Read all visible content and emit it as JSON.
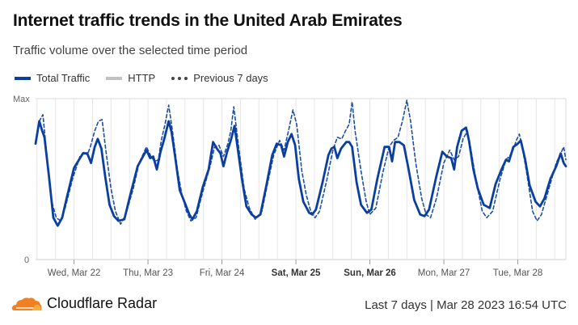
{
  "header": {
    "title": "Internet traffic trends in the United Arab Emirates",
    "subtitle": "Traffic volume over the selected time period"
  },
  "legend": [
    {
      "label": "Total Traffic",
      "color": "#0a3fa0",
      "style": "solid"
    },
    {
      "label": "HTTP",
      "color": "#c2c2c2",
      "style": "solid"
    },
    {
      "label": "Previous 7 days",
      "color": "#444444",
      "style": "dashed"
    }
  ],
  "footer": {
    "brand": "Cloudflare Radar",
    "range": "Last 7 days",
    "separator": "|",
    "timestamp": "Mar 28 2023 16:54 UTC"
  },
  "chart_data": {
    "type": "line",
    "y_tick_labels": [
      "Max",
      "0"
    ],
    "ylim": [
      0,
      100
    ],
    "x_ticks": [
      {
        "label": "Wed, Mar 22",
        "x": 1,
        "bold": false
      },
      {
        "label": "Thu, Mar 23",
        "x": 2,
        "bold": false
      },
      {
        "label": "Fri, Mar 24",
        "x": 3,
        "bold": false
      },
      {
        "label": "Sat, Mar 25",
        "x": 4,
        "bold": true
      },
      {
        "label": "Sun, Mar 26",
        "x": 5,
        "bold": true
      },
      {
        "label": "Mon, Mar 27",
        "x": 6,
        "bold": false
      },
      {
        "label": "Tue, Mar 28",
        "x": 7,
        "bold": false
      }
    ],
    "xlim": [
      0.48,
      7.65
    ],
    "grid": true,
    "series": [
      {
        "name": "Total Traffic",
        "color": "#0a3fa0",
        "dash": false,
        "points": [
          [
            0.48,
            72
          ],
          [
            0.53,
            86
          ],
          [
            0.57,
            80
          ],
          [
            0.6,
            76
          ],
          [
            0.66,
            52
          ],
          [
            0.72,
            26
          ],
          [
            0.78,
            21
          ],
          [
            0.84,
            26
          ],
          [
            0.9,
            38
          ],
          [
            1.0,
            57
          ],
          [
            1.12,
            66
          ],
          [
            1.18,
            66
          ],
          [
            1.23,
            60
          ],
          [
            1.28,
            70
          ],
          [
            1.32,
            75
          ],
          [
            1.37,
            69
          ],
          [
            1.42,
            52
          ],
          [
            1.48,
            34
          ],
          [
            1.54,
            27
          ],
          [
            1.6,
            24
          ],
          [
            1.68,
            25
          ],
          [
            1.76,
            40
          ],
          [
            1.86,
            58
          ],
          [
            1.98,
            68
          ],
          [
            2.03,
            63
          ],
          [
            2.07,
            64
          ],
          [
            2.12,
            56
          ],
          [
            2.17,
            67
          ],
          [
            2.22,
            75
          ],
          [
            2.28,
            86
          ],
          [
            2.32,
            79
          ],
          [
            2.37,
            63
          ],
          [
            2.43,
            43
          ],
          [
            2.5,
            35
          ],
          [
            2.56,
            28
          ],
          [
            2.6,
            25
          ],
          [
            2.66,
            30
          ],
          [
            2.74,
            45
          ],
          [
            2.82,
            56
          ],
          [
            2.88,
            73
          ],
          [
            2.93,
            69
          ],
          [
            2.98,
            66
          ],
          [
            3.02,
            58
          ],
          [
            3.07,
            67
          ],
          [
            3.12,
            74
          ],
          [
            3.17,
            83
          ],
          [
            3.21,
            70
          ],
          [
            3.27,
            50
          ],
          [
            3.33,
            33
          ],
          [
            3.4,
            28
          ],
          [
            3.46,
            26
          ],
          [
            3.52,
            28
          ],
          [
            3.6,
            46
          ],
          [
            3.68,
            65
          ],
          [
            3.74,
            72
          ],
          [
            3.8,
            71
          ],
          [
            3.84,
            64
          ],
          [
            3.89,
            73
          ],
          [
            3.94,
            78
          ],
          [
            3.99,
            71
          ],
          [
            4.04,
            50
          ],
          [
            4.1,
            36
          ],
          [
            4.18,
            29
          ],
          [
            4.22,
            28
          ],
          [
            4.27,
            31
          ],
          [
            4.36,
            48
          ],
          [
            4.44,
            65
          ],
          [
            4.48,
            69
          ],
          [
            4.52,
            70
          ],
          [
            4.56,
            63
          ],
          [
            4.61,
            69
          ],
          [
            4.68,
            73
          ],
          [
            4.72,
            73
          ],
          [
            4.76,
            70
          ],
          [
            4.82,
            48
          ],
          [
            4.88,
            34
          ],
          [
            4.96,
            29
          ],
          [
            5.02,
            31
          ],
          [
            5.1,
            50
          ],
          [
            5.2,
            70
          ],
          [
            5.26,
            70
          ],
          [
            5.3,
            61
          ],
          [
            5.34,
            73
          ],
          [
            5.4,
            73
          ],
          [
            5.46,
            71
          ],
          [
            5.52,
            57
          ],
          [
            5.6,
            37
          ],
          [
            5.68,
            28
          ],
          [
            5.74,
            27
          ],
          [
            5.8,
            31
          ],
          [
            5.9,
            52
          ],
          [
            5.98,
            67
          ],
          [
            6.04,
            64
          ],
          [
            6.1,
            63
          ],
          [
            6.14,
            56
          ],
          [
            6.18,
            70
          ],
          [
            6.24,
            80
          ],
          [
            6.3,
            82
          ],
          [
            6.34,
            74
          ],
          [
            6.4,
            56
          ],
          [
            6.46,
            44
          ],
          [
            6.54,
            34
          ],
          [
            6.62,
            32
          ],
          [
            6.7,
            47
          ],
          [
            6.78,
            56
          ],
          [
            6.84,
            62
          ],
          [
            6.88,
            61
          ],
          [
            6.94,
            70
          ],
          [
            7.0,
            72
          ],
          [
            7.04,
            74
          ],
          [
            7.1,
            62
          ],
          [
            7.16,
            46
          ],
          [
            7.24,
            36
          ],
          [
            7.3,
            33
          ],
          [
            7.36,
            38
          ],
          [
            7.44,
            50
          ],
          [
            7.52,
            58
          ],
          [
            7.58,
            66
          ],
          [
            7.62,
            60
          ],
          [
            7.65,
            58
          ]
        ]
      },
      {
        "name": "Previous 7 days",
        "color": "#1d4fa6",
        "dash": true,
        "points": [
          [
            0.48,
            72
          ],
          [
            0.53,
            86
          ],
          [
            0.58,
            90
          ],
          [
            0.63,
            66
          ],
          [
            0.7,
            36
          ],
          [
            0.76,
            26
          ],
          [
            0.82,
            24
          ],
          [
            0.88,
            32
          ],
          [
            0.98,
            50
          ],
          [
            1.08,
            64
          ],
          [
            1.14,
            67
          ],
          [
            1.18,
            65
          ],
          [
            1.22,
            70
          ],
          [
            1.28,
            80
          ],
          [
            1.33,
            86
          ],
          [
            1.38,
            87
          ],
          [
            1.43,
            68
          ],
          [
            1.5,
            44
          ],
          [
            1.56,
            30
          ],
          [
            1.63,
            22
          ],
          [
            1.7,
            28
          ],
          [
            1.8,
            44
          ],
          [
            1.88,
            60
          ],
          [
            1.98,
            70
          ],
          [
            2.04,
            64
          ],
          [
            2.09,
            61
          ],
          [
            2.14,
            62
          ],
          [
            2.18,
            74
          ],
          [
            2.23,
            84
          ],
          [
            2.28,
            96
          ],
          [
            2.33,
            80
          ],
          [
            2.4,
            55
          ],
          [
            2.46,
            40
          ],
          [
            2.52,
            30
          ],
          [
            2.58,
            24
          ],
          [
            2.65,
            26
          ],
          [
            2.74,
            42
          ],
          [
            2.84,
            58
          ],
          [
            2.9,
            70
          ],
          [
            2.96,
            71
          ],
          [
            3.02,
            64
          ],
          [
            3.08,
            72
          ],
          [
            3.12,
            80
          ],
          [
            3.16,
            95
          ],
          [
            3.22,
            72
          ],
          [
            3.3,
            44
          ],
          [
            3.37,
            32
          ],
          [
            3.45,
            25
          ],
          [
            3.54,
            30
          ],
          [
            3.62,
            48
          ],
          [
            3.7,
            65
          ],
          [
            3.78,
            74
          ],
          [
            3.84,
            68
          ],
          [
            3.9,
            80
          ],
          [
            3.96,
            93
          ],
          [
            4.01,
            84
          ],
          [
            4.08,
            55
          ],
          [
            4.14,
            40
          ],
          [
            4.2,
            30
          ],
          [
            4.26,
            26
          ],
          [
            4.32,
            30
          ],
          [
            4.42,
            50
          ],
          [
            4.5,
            68
          ],
          [
            4.56,
            76
          ],
          [
            4.62,
            75
          ],
          [
            4.67,
            80
          ],
          [
            4.72,
            84
          ],
          [
            4.76,
            98
          ],
          [
            4.8,
            80
          ],
          [
            4.88,
            55
          ],
          [
            4.95,
            36
          ],
          [
            5.0,
            28
          ],
          [
            5.08,
            32
          ],
          [
            5.18,
            55
          ],
          [
            5.26,
            70
          ],
          [
            5.32,
            74
          ],
          [
            5.38,
            76
          ],
          [
            5.44,
            86
          ],
          [
            5.5,
            99
          ],
          [
            5.55,
            86
          ],
          [
            5.62,
            60
          ],
          [
            5.7,
            38
          ],
          [
            5.76,
            28
          ],
          [
            5.82,
            26
          ],
          [
            5.9,
            38
          ],
          [
            6.0,
            60
          ],
          [
            6.08,
            68
          ],
          [
            6.14,
            62
          ],
          [
            6.2,
            64
          ],
          [
            6.26,
            75
          ],
          [
            6.32,
            80
          ],
          [
            6.36,
            70
          ],
          [
            6.44,
            48
          ],
          [
            6.52,
            30
          ],
          [
            6.58,
            26
          ],
          [
            6.66,
            30
          ],
          [
            6.76,
            50
          ],
          [
            6.84,
            62
          ],
          [
            6.92,
            66
          ],
          [
            6.98,
            74
          ],
          [
            7.02,
            78
          ],
          [
            7.06,
            70
          ],
          [
            7.12,
            54
          ],
          [
            7.2,
            30
          ],
          [
            7.26,
            24
          ],
          [
            7.32,
            28
          ],
          [
            7.42,
            44
          ],
          [
            7.52,
            60
          ],
          [
            7.58,
            66
          ],
          [
            7.62,
            70
          ],
          [
            7.65,
            62
          ]
        ]
      }
    ]
  }
}
